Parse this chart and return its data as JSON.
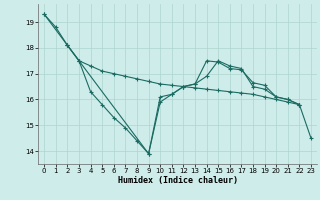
{
  "xlabel": "Humidex (Indice chaleur)",
  "background_color": "#ceecea",
  "grid_color": "#aed4d0",
  "line_color": "#1a6b62",
  "xlim": [
    -0.5,
    23.5
  ],
  "ylim": [
    13.5,
    19.7
  ],
  "yticks": [
    14,
    15,
    16,
    17,
    18,
    19
  ],
  "xticks": [
    0,
    1,
    2,
    3,
    4,
    5,
    6,
    7,
    8,
    9,
    10,
    11,
    12,
    13,
    14,
    15,
    16,
    17,
    18,
    19,
    20,
    21,
    22,
    23
  ],
  "series": [
    {
      "x": [
        0,
        1,
        2,
        3,
        4,
        5,
        6,
        7,
        8,
        9,
        10,
        11,
        12,
        13,
        14,
        15,
        16,
        17,
        18,
        19,
        20,
        21,
        22,
        23
      ],
      "y": [
        19.3,
        18.8,
        18.1,
        17.5,
        17.3,
        17.1,
        17.0,
        16.9,
        16.8,
        16.7,
        16.6,
        16.55,
        16.5,
        16.45,
        16.4,
        16.35,
        16.3,
        16.25,
        16.2,
        16.1,
        16.0,
        15.9,
        15.8,
        14.5
      ]
    },
    {
      "x": [
        0,
        2,
        3,
        4,
        5,
        6,
        7,
        8,
        9,
        10,
        11,
        12,
        13,
        14,
        15,
        16,
        17,
        18,
        19,
        20,
        21,
        22
      ],
      "y": [
        19.3,
        18.1,
        17.5,
        16.3,
        15.8,
        15.3,
        14.9,
        14.4,
        13.9,
        15.9,
        16.2,
        16.5,
        16.6,
        16.9,
        17.5,
        17.3,
        17.2,
        16.5,
        16.4,
        16.1,
        16.0,
        15.8
      ]
    },
    {
      "x": [
        2,
        3,
        9,
        10,
        11,
        12,
        13,
        14,
        15,
        16,
        17,
        18,
        19,
        20,
        21,
        22
      ],
      "y": [
        18.1,
        17.5,
        13.9,
        16.1,
        16.2,
        16.5,
        16.6,
        17.5,
        17.45,
        17.2,
        17.15,
        16.65,
        16.55,
        16.1,
        16.0,
        15.8
      ]
    }
  ]
}
